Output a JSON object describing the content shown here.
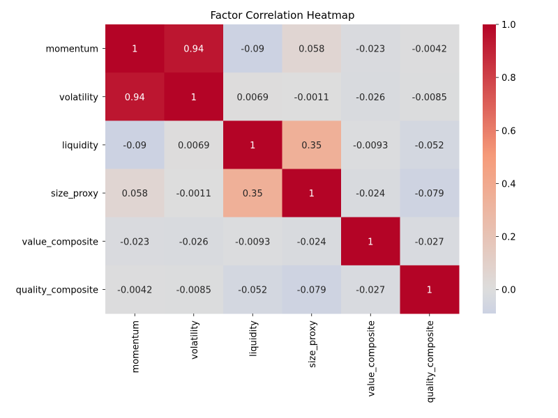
{
  "chart_data": {
    "type": "heatmap",
    "title": "Factor Correlation Heatmap",
    "rows": [
      "momentum",
      "volatility",
      "liquidity",
      "size_proxy",
      "value_composite",
      "quality_composite"
    ],
    "columns": [
      "momentum",
      "volatility",
      "liquidity",
      "size_proxy",
      "value_composite",
      "quality_composite"
    ],
    "values": [
      [
        1,
        0.94,
        -0.09,
        0.058,
        -0.023,
        -0.0042
      ],
      [
        0.94,
        1,
        0.0069,
        -0.0011,
        -0.026,
        -0.0085
      ],
      [
        -0.09,
        0.0069,
        1,
        0.35,
        -0.0093,
        -0.052
      ],
      [
        0.058,
        -0.0011,
        0.35,
        1,
        -0.024,
        -0.079
      ],
      [
        -0.023,
        -0.026,
        -0.0093,
        -0.024,
        1,
        -0.027
      ],
      [
        -0.0042,
        -0.0085,
        -0.052,
        -0.079,
        -0.027,
        1
      ]
    ],
    "cell_labels": [
      [
        "1",
        "0.94",
        "-0.09",
        "0.058",
        "-0.023",
        "-0.0042"
      ],
      [
        "0.94",
        "1",
        "0.0069",
        "-0.0011",
        "-0.026",
        "-0.0085"
      ],
      [
        "-0.09",
        "0.0069",
        "1",
        "0.35",
        "-0.0093",
        "-0.052"
      ],
      [
        "0.058",
        "-0.0011",
        "0.35",
        "1",
        "-0.024",
        "-0.079"
      ],
      [
        "-0.023",
        "-0.026",
        "-0.0093",
        "-0.024",
        "1",
        "-0.027"
      ],
      [
        "-0.0042",
        "-0.0085",
        "-0.052",
        "-0.079",
        "-0.027",
        "1"
      ]
    ],
    "colormap": "coolwarm",
    "colormap_center": 0,
    "colorbar": {
      "range": [
        -0.09,
        1.0
      ],
      "ticks": [
        0.0,
        0.2,
        0.4,
        0.6,
        0.8,
        1.0
      ],
      "tick_labels": [
        "0.0",
        "0.2",
        "0.4",
        "0.6",
        "0.8",
        "1.0"
      ]
    },
    "colors": {
      "low": "#3b4cc0",
      "mid": "#dddddd",
      "high": "#b40426",
      "light_text": "#ffffff",
      "dark_text": "#262626"
    }
  }
}
